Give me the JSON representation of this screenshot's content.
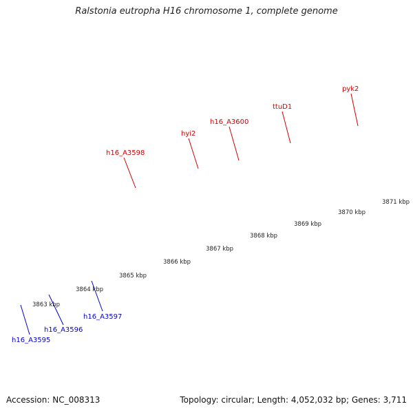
{
  "title": "Ralstonia eutropha H16 chromosome 1, complete genome",
  "footer": {
    "accession": "Accession: NC_008313",
    "summary": "Topology: circular; Length: 4,052,032 bp; Genes: 3,711"
  },
  "colors": {
    "backbone": "#8a8a8a",
    "forward_cds": "#e60000",
    "reverse_cds": "#0000e0",
    "cyan_feature": "#1ccccc",
    "purple_feature": "#6a5acd",
    "gray_feature": "#c8c8c8",
    "tick": "#2a8a2a",
    "forward_label": "#cc0000",
    "reverse_label": "#0000cc"
  },
  "kbp_ticks": [
    "3863 kbp",
    "3864 kbp",
    "3865 kbp",
    "3866 kbp",
    "3867 kbp",
    "3868 kbp",
    "3869 kbp",
    "3870 kbp",
    "3871 kbp"
  ],
  "forward_gene_labels": [
    "h16_A3598",
    "hyi2",
    "h16_A3600",
    "ttuD1",
    "pyk2"
  ],
  "reverse_gene_labels": [
    "h16_A3595",
    "h16_A3596",
    "h16_A3597"
  ]
}
